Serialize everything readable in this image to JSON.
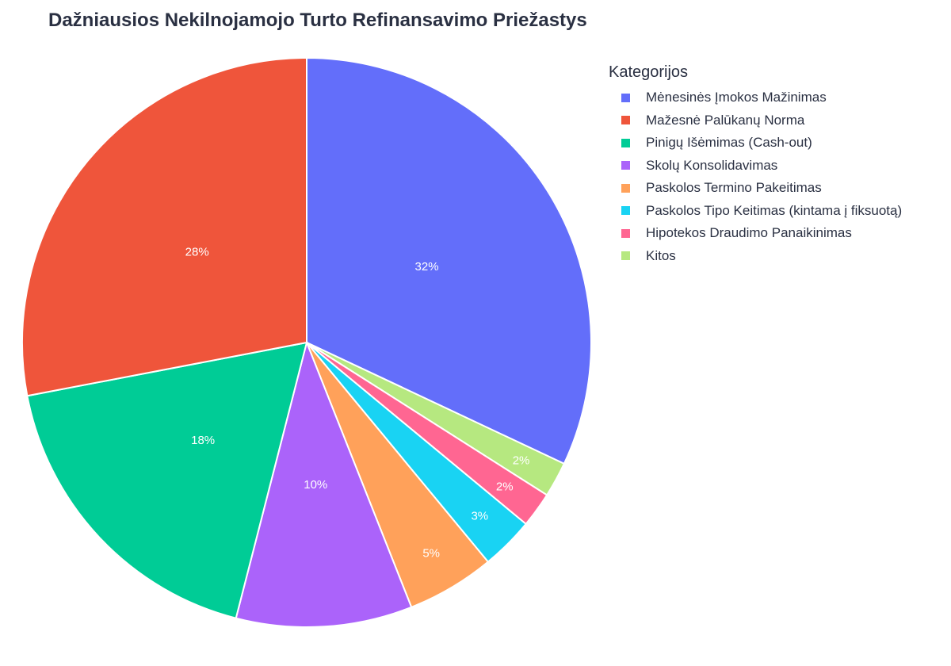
{
  "chart_data": {
    "type": "pie",
    "title": "Dažniausios Nekilnojamojo Turto Refinansavimo Priežastys",
    "legend_title": "Kategorijos",
    "legend_position": "right",
    "categories": [
      "Mėnesinės Įmokos Mažinimas",
      "Mažesnė Palūkanų Norma",
      "Pinigų Išėmimas (Cash-out)",
      "Skolų Konsolidavimas",
      "Paskolos Termino Pakeitimas",
      "Paskolos Tipo Keitimas (kintama į fiksuotą)",
      "Hipotekos Draudimo Panaikinimas",
      "Kitos"
    ],
    "values": [
      32,
      28,
      18,
      10,
      5,
      3,
      2,
      2
    ],
    "labels": [
      "32%",
      "28%",
      "18%",
      "10%",
      "5%",
      "3%",
      "2%",
      "2%"
    ],
    "colors": [
      "#636efa",
      "#ef553b",
      "#00cc96",
      "#ab63fa",
      "#ffa15a",
      "#19d3f3",
      "#ff6692",
      "#b6e880"
    ]
  }
}
